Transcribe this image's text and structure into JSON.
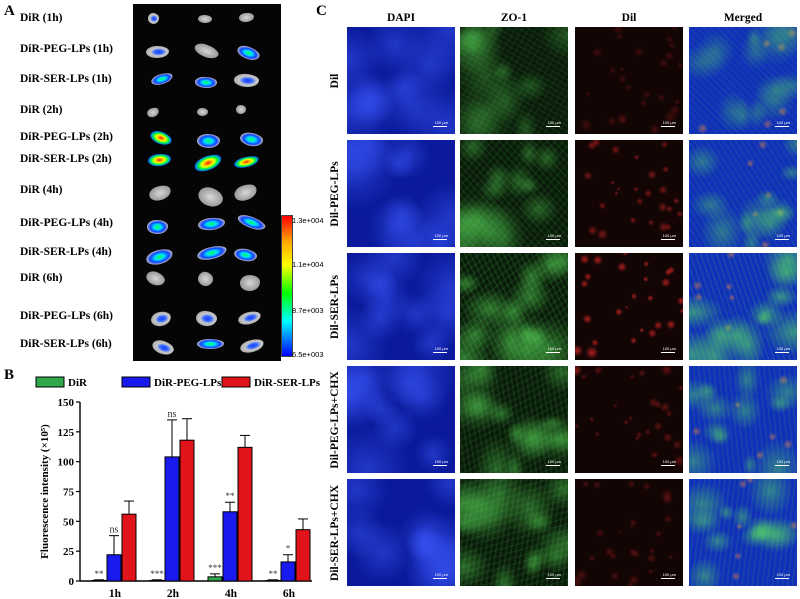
{
  "panelA": {
    "letter": "A",
    "rows": [
      "DiR (1h)",
      "DiR-PEG-LPs (1h)",
      "DiR-SER-LPs (1h)",
      "DiR (2h)",
      "DiR-PEG-LPs (2h)",
      "DiR-SER-LPs (2h)",
      "DiR (4h)",
      "DiR-PEG-LPs (4h)",
      "DiR-SER-LPs (4h)",
      "DiR (6h)",
      "DiR-PEG-LPs (6h)",
      "DiR-SER-LPs (6h)"
    ],
    "colorbar": {
      "max": "1.3e+004",
      "t2": "1.1e+004",
      "t3": "8.7e+003",
      "min": "6.5e+003"
    },
    "colors": {
      "background": "#050505",
      "low": "#0000ff",
      "high": "#ff0000"
    }
  },
  "panelB": {
    "letter": "B",
    "chart_data": {
      "type": "bar",
      "categories": [
        "1h",
        "2h",
        "4h",
        "6h"
      ],
      "series": [
        {
          "name": "DiR",
          "color": "#2ea84a",
          "values": [
            0.5,
            0.5,
            3.5,
            0.5
          ],
          "errors": [
            0.5,
            0.5,
            2.5,
            0.5
          ],
          "annotations": [
            "**",
            "***",
            "***",
            "**"
          ]
        },
        {
          "name": "DiR-PEG-LPs",
          "color": "#1a1aee",
          "values": [
            22,
            104,
            58,
            16
          ],
          "errors": [
            16,
            31,
            8,
            6
          ],
          "annotations": [
            "ns",
            "ns",
            "**",
            "*"
          ]
        },
        {
          "name": "DiR-SER-LPs",
          "color": "#e0141a",
          "values": [
            56,
            118,
            112,
            43
          ],
          "errors": [
            11,
            18,
            10,
            9
          ],
          "annotations": [
            "",
            "",
            "",
            ""
          ]
        }
      ],
      "ylabel": "Fluorescence intensity (×10⁵)",
      "yticks": [
        "0",
        "25",
        "50",
        "75",
        "100",
        "125",
        "150"
      ],
      "ylim": [
        0,
        150
      ],
      "legend_position": "top"
    }
  },
  "panelC": {
    "letter": "C",
    "columns": [
      "DAPI",
      "ZO-1",
      "Dil",
      "Merged"
    ],
    "rows": [
      "Dil",
      "Dil-PEG-LPs",
      "Dil-SER-LPs",
      "Dil-PEG-LPs+CHX",
      "Dil-SER-LPs+CHX"
    ],
    "scale_label": "100 µm",
    "colors": {
      "dapi": "#0a1fb0",
      "zo1": "#3fbf3f",
      "dil": "#d82020"
    }
  }
}
